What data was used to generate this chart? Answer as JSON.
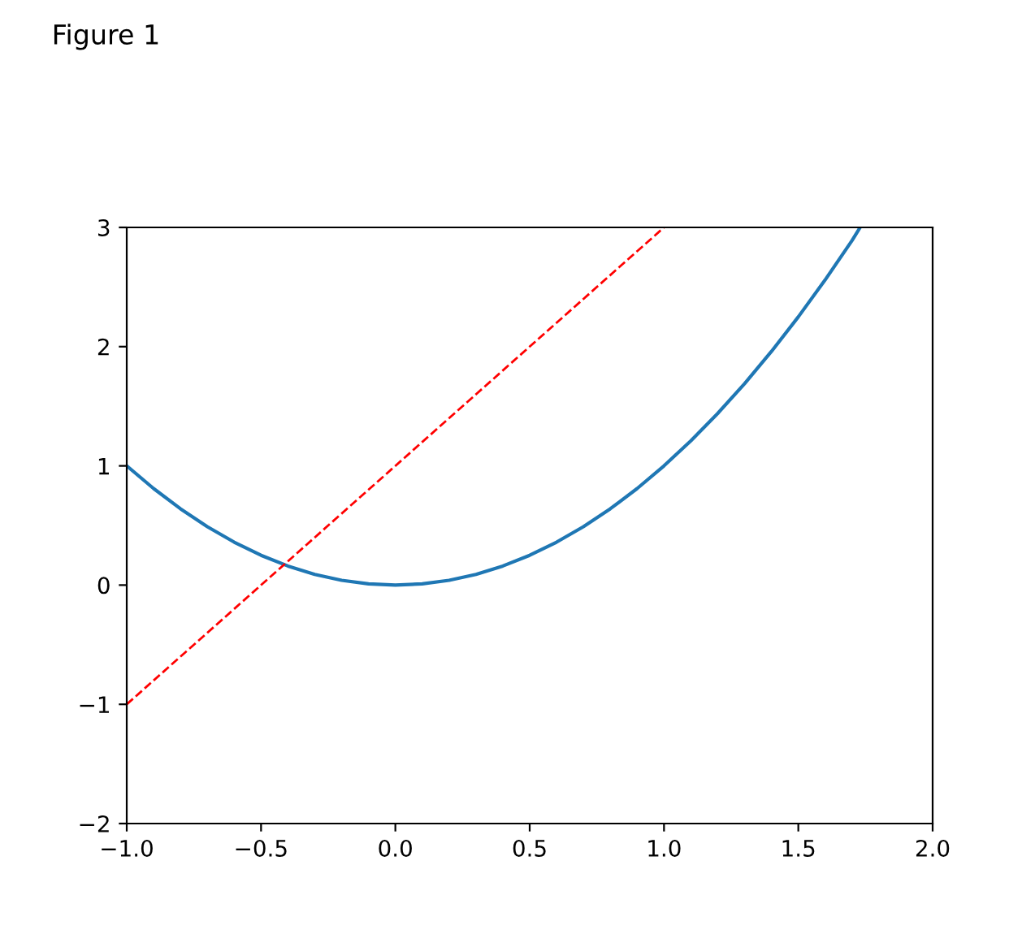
{
  "chart_data": {
    "type": "line",
    "annotations": [
      "Figure 1"
    ],
    "series": [
      {
        "color": "#1f77b4",
        "line_style": "solid",
        "x": [
          -1.0,
          -0.9,
          -0.8,
          -0.7,
          -0.6,
          -0.5,
          -0.4,
          -0.3,
          -0.2,
          -0.1,
          0.0,
          0.1,
          0.2,
          0.3,
          0.4,
          0.5,
          0.6,
          0.7,
          0.8,
          0.9,
          1.0,
          1.1,
          1.2,
          1.3,
          1.4,
          1.5,
          1.6,
          1.7,
          1.73
        ],
        "values": [
          1.0,
          0.81,
          0.64,
          0.49,
          0.36,
          0.25,
          0.16,
          0.09,
          0.04,
          0.01,
          0.0,
          0.01,
          0.04,
          0.09,
          0.16,
          0.25,
          0.36,
          0.49,
          0.64,
          0.81,
          1.0,
          1.21,
          1.44,
          1.69,
          1.96,
          2.25,
          2.56,
          2.89,
          3.0
        ]
      },
      {
        "color": "#ff0000",
        "line_style": "dashed",
        "x": [
          -1.0,
          1.0
        ],
        "values": [
          -1.0,
          3.0
        ]
      }
    ],
    "xlim": [
      -1.0,
      2.0
    ],
    "xticks": [
      {
        "value": -1.0,
        "label": "−1.0"
      },
      {
        "value": -0.5,
        "label": "−0.5"
      },
      {
        "value": 0.0,
        "label": "0.0"
      },
      {
        "value": 0.5,
        "label": "0.5"
      },
      {
        "value": 1.0,
        "label": "1.0"
      },
      {
        "value": 1.5,
        "label": "1.5"
      },
      {
        "value": 2.0,
        "label": "2.0"
      }
    ],
    "ylim": [
      -2,
      3
    ],
    "yticks": [
      {
        "value": -2,
        "label": "−2"
      },
      {
        "value": -1,
        "label": "−1"
      },
      0,
      1,
      2,
      3
    ],
    "grid": false,
    "legend": false,
    "marker": "none"
  }
}
